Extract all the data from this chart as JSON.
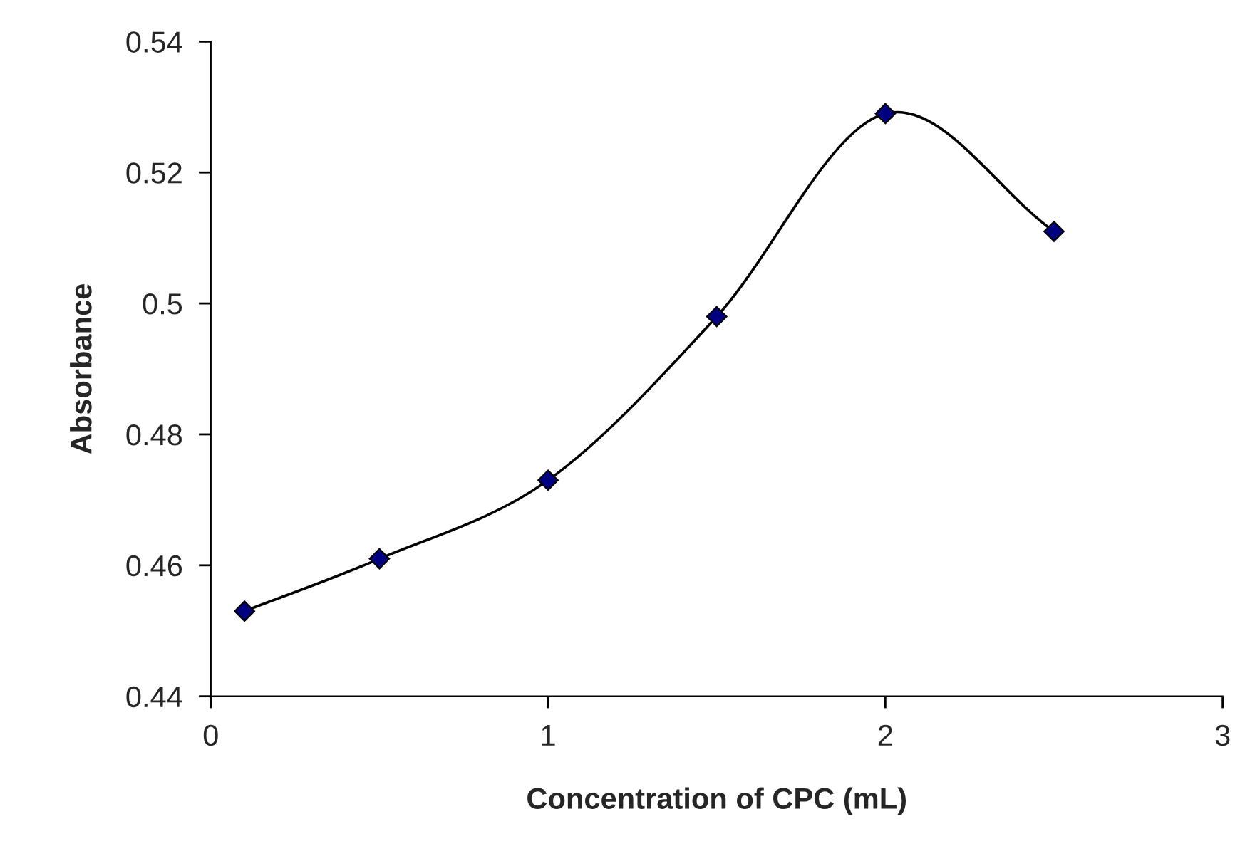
{
  "chart_data": {
    "type": "line",
    "xlabel": "Concentration of CPC (mL)",
    "ylabel": "Absorbance",
    "x": [
      0.1,
      0.5,
      1,
      1.5,
      2,
      2.5
    ],
    "series": [
      {
        "color": "#000080",
        "values": [
          0.453,
          0.461,
          0.473,
          0.498,
          0.529,
          0.511
        ]
      }
    ],
    "xlim": [
      0,
      3
    ],
    "xticks": [
      0,
      1,
      2,
      3
    ],
    "ylim": [
      0.44,
      0.54
    ],
    "yticks": [
      0.44,
      0.46,
      0.48,
      0.5,
      0.52,
      0.54
    ],
    "marker": "diamond",
    "line_style": "solid",
    "grid": false,
    "legend": false
  }
}
